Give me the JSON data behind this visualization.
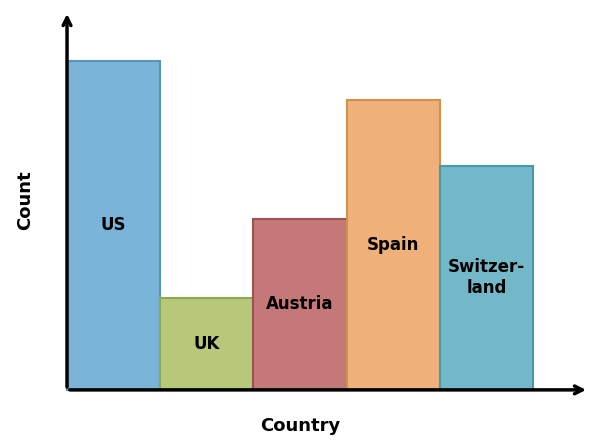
{
  "categories": [
    "US",
    "UK",
    "Austria",
    "Spain",
    "Switzer-\nland"
  ],
  "values": [
    10.0,
    2.8,
    5.2,
    8.8,
    6.8
  ],
  "bar_colors": [
    "#7ab4d8",
    "#b8c87a",
    "#c47878",
    "#f0b07a",
    "#72b8c8"
  ],
  "bar_edge_colors": [
    "#5a94b8",
    "#8aaa50",
    "#a05050",
    "#d09050",
    "#4a98a8"
  ],
  "xlabel": "Country",
  "ylabel": "Count",
  "xlabel_fontsize": 13,
  "ylabel_fontsize": 13,
  "label_fontsize": 12,
  "background_color": "#ffffff",
  "ylim": [
    0,
    11.5
  ],
  "bar_width": 1.0,
  "axis_lw": 2.5,
  "arrow_scale": 14
}
